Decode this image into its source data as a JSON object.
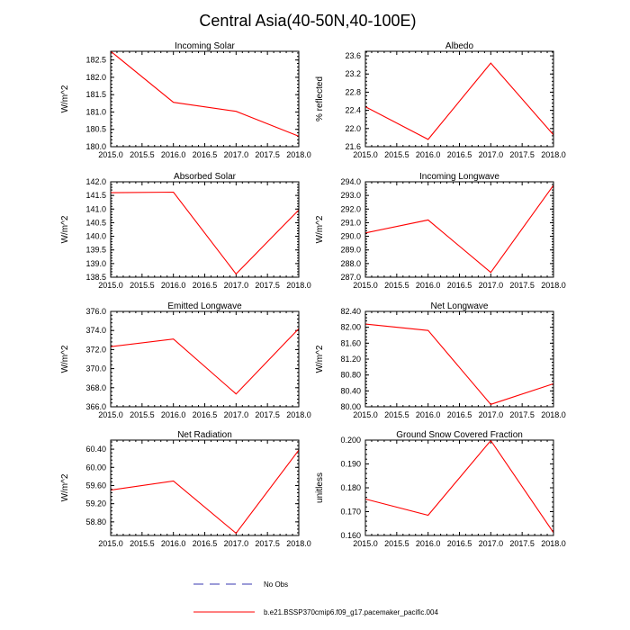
{
  "title": "Central Asia(40-50N,40-100E)",
  "legend": {
    "items": [
      {
        "label": "No Obs",
        "style": "dashed",
        "color": "#3a3ab0"
      },
      {
        "label": "b.e21.BSSP370cmip6.f09_g17.pacemaker_pacific.004",
        "style": "solid",
        "color": "#ff0000"
      }
    ]
  },
  "chart_data": [
    {
      "type": "line",
      "title": "Incoming Solar",
      "ylabel": "W/m^2",
      "x": [
        2015,
        2016,
        2017,
        2018
      ],
      "xticks": [
        "2015.0",
        "2015.5",
        "2016.0",
        "2016.5",
        "2017.0",
        "2017.5",
        "2018.0"
      ],
      "yticks": [
        "180.0",
        "180.5",
        "181.0",
        "181.5",
        "182.0",
        "182.5"
      ],
      "ylim": [
        180.0,
        182.75
      ],
      "xlim": [
        2015,
        2018
      ],
      "series": [
        {
          "values": [
            182.75,
            181.28,
            181.02,
            180.3
          ],
          "color": "#ff0000"
        }
      ]
    },
    {
      "type": "line",
      "title": "Albedo",
      "ylabel": "% reflected",
      "x": [
        2015,
        2016,
        2017,
        2018
      ],
      "xticks": [
        "2015.0",
        "2015.5",
        "2016.0",
        "2016.5",
        "2017.0",
        "2017.5",
        "2018.0"
      ],
      "yticks": [
        "21.6",
        "22.0",
        "22.4",
        "22.8",
        "23.2",
        "23.6"
      ],
      "ylim": [
        21.6,
        23.7
      ],
      "xlim": [
        2015,
        2018
      ],
      "series": [
        {
          "values": [
            22.48,
            21.76,
            23.44,
            21.86
          ],
          "color": "#ff0000"
        }
      ]
    },
    {
      "type": "line",
      "title": "Absorbed Solar",
      "ylabel": "W/m^2",
      "x": [
        2015,
        2016,
        2017,
        2018
      ],
      "xticks": [
        "2015.0",
        "2015.5",
        "2016.0",
        "2016.5",
        "2017.0",
        "2017.5",
        "2018.0"
      ],
      "yticks": [
        "138.5",
        "139.0",
        "139.5",
        "140.0",
        "140.5",
        "141.0",
        "141.5",
        "142.0"
      ],
      "ylim": [
        138.5,
        142.0
      ],
      "xlim": [
        2015,
        2018
      ],
      "series": [
        {
          "values": [
            141.6,
            141.62,
            138.62,
            140.97
          ],
          "color": "#ff0000"
        }
      ]
    },
    {
      "type": "line",
      "title": "Incoming Longwave",
      "ylabel": "W/m^2",
      "x": [
        2015,
        2016,
        2017,
        2018
      ],
      "xticks": [
        "2015.0",
        "2015.5",
        "2016.0",
        "2016.5",
        "2017.0",
        "2017.5",
        "2018.0"
      ],
      "yticks": [
        "287.0",
        "288.0",
        "289.0",
        "290.0",
        "291.0",
        "292.0",
        "293.0",
        "294.0"
      ],
      "ylim": [
        287.0,
        294.0
      ],
      "xlim": [
        2015,
        2018
      ],
      "series": [
        {
          "values": [
            290.25,
            291.2,
            287.35,
            293.75
          ],
          "color": "#ff0000"
        }
      ]
    },
    {
      "type": "line",
      "title": "Emitted Longwave",
      "ylabel": "W/m^2",
      "x": [
        2015,
        2016,
        2017,
        2018
      ],
      "xticks": [
        "2015.0",
        "2015.5",
        "2016.0",
        "2016.5",
        "2017.0",
        "2017.5",
        "2018.0"
      ],
      "yticks": [
        "366.0",
        "368.0",
        "370.0",
        "372.0",
        "374.0",
        "376.0"
      ],
      "ylim": [
        366.0,
        376.0
      ],
      "xlim": [
        2015,
        2018
      ],
      "series": [
        {
          "values": [
            372.3,
            373.1,
            367.35,
            374.2
          ],
          "color": "#ff0000"
        }
      ]
    },
    {
      "type": "line",
      "title": "Net Longwave",
      "ylabel": "W/m^2",
      "x": [
        2015,
        2016,
        2017,
        2018
      ],
      "xticks": [
        "2015.0",
        "2015.5",
        "2016.0",
        "2016.5",
        "2017.0",
        "2017.5",
        "2018.0"
      ],
      "yticks": [
        "80.00",
        "80.40",
        "80.80",
        "81.20",
        "81.60",
        "82.00",
        "82.40"
      ],
      "ylim": [
        80.0,
        82.4
      ],
      "xlim": [
        2015,
        2018
      ],
      "series": [
        {
          "values": [
            82.08,
            81.92,
            80.06,
            80.58
          ],
          "color": "#ff0000"
        }
      ]
    },
    {
      "type": "line",
      "title": "Net Radiation",
      "ylabel": "W/m^2",
      "x": [
        2015,
        2016,
        2017,
        2018
      ],
      "xticks": [
        "2015.0",
        "2015.5",
        "2016.0",
        "2016.5",
        "2017.0",
        "2017.5",
        "2018.0"
      ],
      "yticks": [
        "58.80",
        "59.20",
        "59.60",
        "60.00",
        "60.40"
      ],
      "ylim": [
        58.5,
        60.6
      ],
      "xlim": [
        2015,
        2018
      ],
      "series": [
        {
          "values": [
            59.5,
            59.7,
            58.55,
            60.38
          ],
          "color": "#ff0000"
        }
      ]
    },
    {
      "type": "line",
      "title": "Ground Snow Covered Fraction",
      "ylabel": "unitless",
      "x": [
        2015,
        2016,
        2017,
        2018
      ],
      "xticks": [
        "2015.0",
        "2015.5",
        "2016.0",
        "2016.5",
        "2017.0",
        "2017.5",
        "2018.0"
      ],
      "yticks": [
        "0.160",
        "0.170",
        "0.180",
        "0.190",
        "0.200"
      ],
      "ylim": [
        0.16,
        0.2
      ],
      "xlim": [
        2015,
        2018
      ],
      "series": [
        {
          "values": [
            0.1753,
            0.1685,
            0.1998,
            0.1612
          ],
          "color": "#ff0000"
        }
      ]
    }
  ]
}
